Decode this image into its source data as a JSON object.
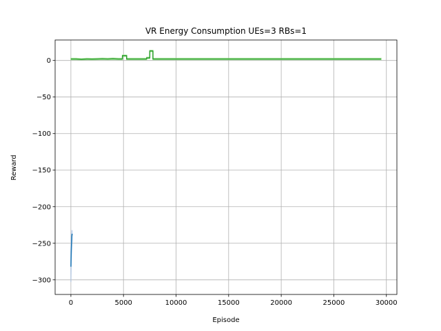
{
  "chart_data": {
    "type": "line",
    "title": "VR Energy Consumption UEs=3 RBs=1",
    "xlabel": "Episode",
    "ylabel": "Reward",
    "xlim": [
      -1500,
      31000
    ],
    "ylim": [
      -320,
      28
    ],
    "xticks": [
      0,
      5000,
      10000,
      15000,
      20000,
      25000,
      30000
    ],
    "xtick_labels": [
      "0",
      "5000",
      "10000",
      "15000",
      "20000",
      "25000",
      "30000"
    ],
    "yticks": [
      0,
      -50,
      -100,
      -150,
      -200,
      -250,
      -300
    ],
    "ytick_labels": [
      "0",
      "−50",
      "−100",
      "−150",
      "−200",
      "−250",
      "−300"
    ],
    "grid": true,
    "series": [
      {
        "color": "#1f77b4",
        "band_color": "#aec7e8",
        "x": [
          0,
          10,
          20,
          30,
          40,
          50,
          60,
          70,
          80,
          90,
          100,
          110,
          120
        ],
        "y": [
          -282,
          -275,
          -268,
          -262,
          -258,
          -254,
          -250,
          -246,
          -242,
          -240,
          -238,
          -239,
          -237
        ],
        "lower": [
          -303,
          -296,
          -290,
          -284,
          -278,
          -272,
          -266,
          -261,
          -256,
          -252,
          -249,
          -248,
          -246
        ],
        "upper": [
          -262,
          -256,
          -250,
          -245,
          -241,
          -238,
          -236,
          -234,
          -233,
          -233,
          -232,
          -233,
          -232
        ]
      },
      {
        "color": "#2ca02c",
        "band_color": "#98df8a",
        "x": [
          0,
          500,
          1000,
          1500,
          2000,
          2500,
          3000,
          3500,
          4000,
          4500,
          4900,
          4901,
          5300,
          5301,
          6000,
          6500,
          7000,
          7200,
          7201,
          7500,
          7501,
          7800,
          7801,
          8500,
          10000,
          15000,
          20000,
          25000,
          29500
        ],
        "y": [
          2,
          2,
          1.5,
          2,
          1.8,
          2,
          2.2,
          2,
          2.3,
          2,
          2,
          6.5,
          6.5,
          2,
          2,
          2,
          2,
          2,
          3.5,
          3.5,
          13,
          13,
          2,
          2,
          2,
          2,
          2,
          2,
          2
        ],
        "lower": [
          1,
          1,
          0.8,
          1,
          0.8,
          1,
          1.2,
          1,
          1.2,
          1,
          1,
          5.5,
          5.5,
          1,
          1,
          1,
          1,
          1,
          2.5,
          2.5,
          12,
          12,
          1,
          1,
          1,
          1,
          1,
          1,
          1
        ],
        "upper": [
          3,
          3,
          2.5,
          3,
          2.8,
          3,
          3.2,
          3,
          3.4,
          3,
          3,
          7.5,
          7.5,
          3,
          3,
          3,
          3,
          3,
          4.5,
          4.5,
          14,
          14,
          3,
          3,
          3,
          3,
          3,
          3,
          3
        ]
      }
    ]
  }
}
